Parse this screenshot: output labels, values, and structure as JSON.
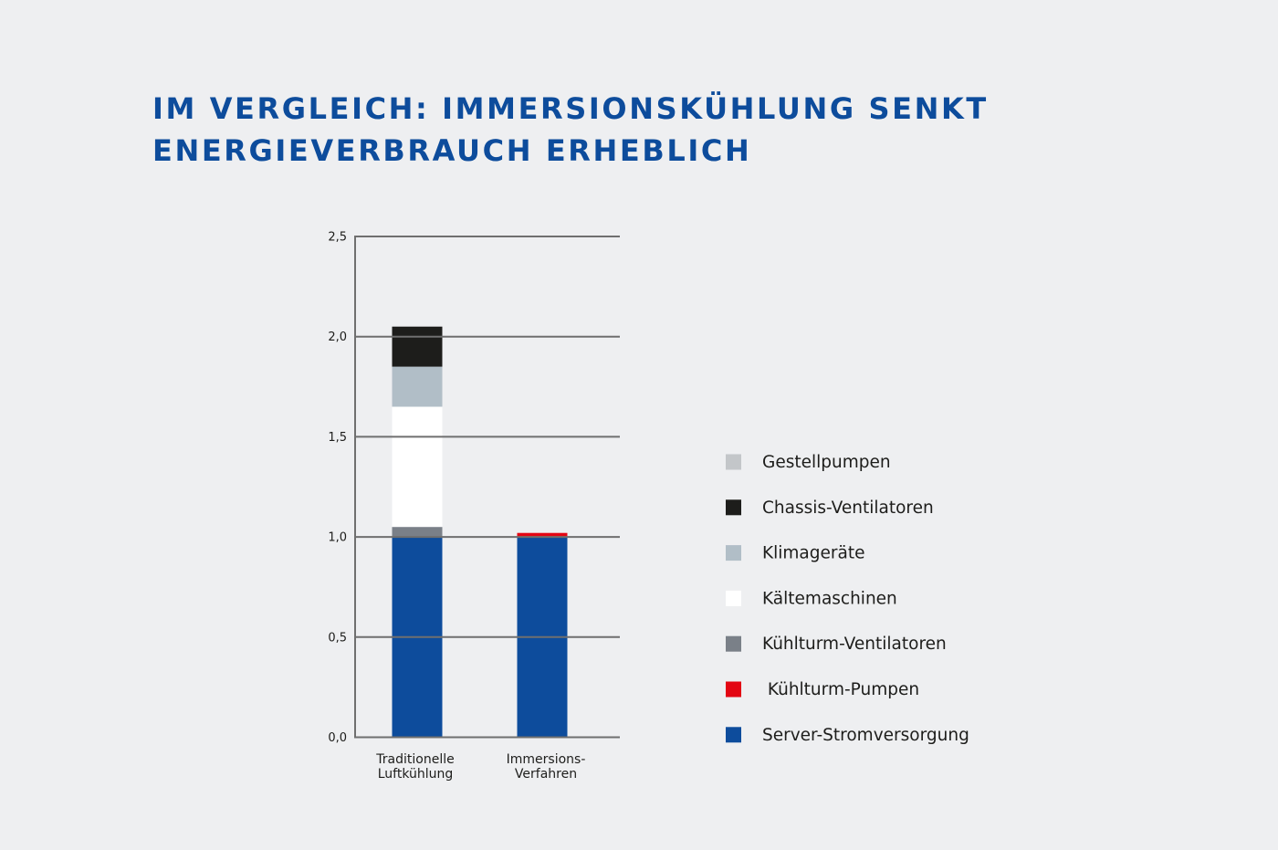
{
  "title_lines": [
    "IM VERGLEICH: IMMERSIONSKÜHLUNG SENKT",
    "ENERGIEVERBRAUCH ERHEBLICH"
  ],
  "chart_data": {
    "type": "bar",
    "stacked": true,
    "title": "IM VERGLEICH: IMMERSIONSKÜHLUNG SENKT ENERGIEVERBRAUCH ERHEBLICH",
    "xlabel": "",
    "ylabel": "",
    "ylim": [
      0,
      2.5
    ],
    "yticks": [
      "0,0",
      "0,5",
      "1,0",
      "1,5",
      "2,0",
      "2,5"
    ],
    "grid": true,
    "legend_position": "right",
    "categories": [
      [
        "Traditionelle",
        "Luftkühlung"
      ],
      [
        "Immersions-",
        "Verfahren"
      ]
    ],
    "series": [
      {
        "name": "Server-Stromversorgung",
        "color": "#0d4c9c",
        "values": [
          1.0,
          1.0
        ]
      },
      {
        "name": "Kühlturm-Pumpen",
        "color": "#e30613",
        "values": [
          0.0,
          0.02
        ]
      },
      {
        "name": "Kühlturm-Ventilatoren",
        "color": "#7a8088",
        "values": [
          0.05,
          0.0
        ]
      },
      {
        "name": "Kältemaschinen",
        "color": "#ffffff",
        "values": [
          0.6,
          0.0
        ]
      },
      {
        "name": "Klimageräte",
        "color": "#b1bec7",
        "values": [
          0.2,
          0.0
        ]
      },
      {
        "name": "Chassis-Ventilatoren",
        "color": "#1d1d1b",
        "values": [
          0.2,
          0.0
        ]
      },
      {
        "name": "Gestellpumpen",
        "color": "#c3c6c9",
        "values": [
          0.0,
          0.0
        ]
      }
    ],
    "legend": [
      {
        "name": "Gestellpumpen",
        "color": "#c3c6c9",
        "label": "Gestellpumpen"
      },
      {
        "name": "Chassis-Ventilatoren",
        "color": "#1d1d1b",
        "label": "Chassis-Ventilatoren"
      },
      {
        "name": "Klimageräte",
        "color": "#b1bec7",
        "label": "Klimageräte"
      },
      {
        "name": "Kältemaschinen",
        "color": "#ffffff",
        "label": "Kältemaschinen"
      },
      {
        "name": "Kühlturm-Ventilatoren",
        "color": "#7a8088",
        "label": "Kühlturm-Ventilatoren"
      },
      {
        "name": "Kühlturm-Pumpen",
        "color": "#e30613",
        "label": " Kühlturm-Pumpen"
      },
      {
        "name": "Server-Stromversorgung",
        "color": "#0d4c9c",
        "label": "Server-Stromversorgung"
      }
    ]
  }
}
